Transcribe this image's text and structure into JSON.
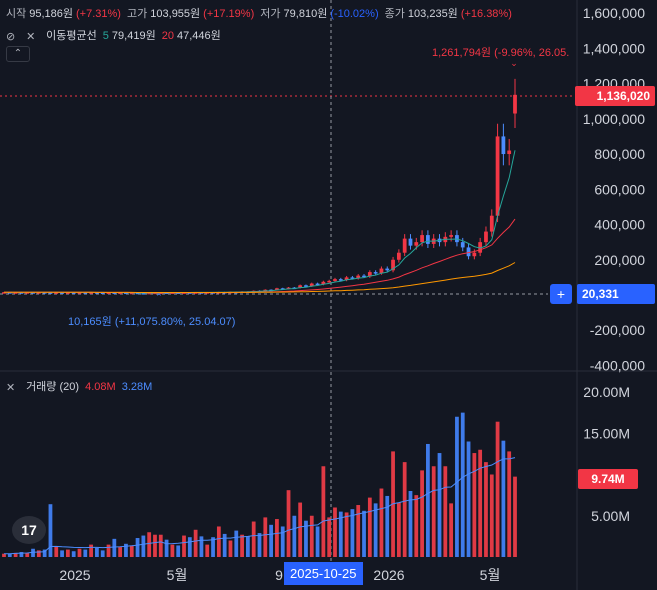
{
  "legend": {
    "open_label": "시작",
    "open_val": "95,186원",
    "open_pct": "(+7.31%)",
    "high_label": "고가",
    "high_val": "103,955원",
    "high_pct": "(+17.19%)",
    "low_label": "저가",
    "low_val": "79,810원",
    "low_pct": "(-10.02%)",
    "close_label": "종가",
    "close_val": "103,235원",
    "close_pct": "(+16.38%)",
    "ma_title": "이동평균선",
    "ma5_period": "5",
    "ma5_val": "79,419원",
    "ma20_period": "20",
    "ma20_val": "47,446원",
    "vol_title": "거래량 (20)",
    "vol_val1": "4.08M",
    "vol_val2": "3.28M"
  },
  "annotations": {
    "high_text": "1,261,794원 (-9.96%, 26.05.",
    "low_text": "10,165원 (+11,075.80%, 25.04.07)",
    "last_price_tag": "1,136,020",
    "crosshair_price_tag": "20,331",
    "crosshair_date_tag": "2025-10-25",
    "last_volume_tag": "9.74M"
  },
  "colors": {
    "up": "#f23645",
    "down": "#2962ff",
    "bg": "#131722",
    "ma5": "#26a69a",
    "ma20": "#f23645",
    "ma60": "#ff9800"
  },
  "chart_data": {
    "type": "candlestick",
    "price_axis": {
      "ticks": [
        1600000,
        1400000,
        1200000,
        1000000,
        800000,
        600000,
        400000,
        200000,
        0,
        -200000,
        -400000
      ],
      "tick_labels": [
        "1,600,000",
        "1,400,000",
        "1,200,000",
        "1,000,000",
        "800,000",
        "600,000",
        "400,000",
        "200,000",
        "0",
        "-200,000",
        "-400,000"
      ]
    },
    "volume_axis": {
      "ticks": [
        20000000,
        15000000,
        10000000,
        5000000
      ],
      "tick_labels": [
        "20.00M",
        "15.00M",
        "10.00M",
        "5.00M"
      ]
    },
    "x_axis_labels": [
      "2025",
      "5월",
      "9",
      "2026",
      "5월"
    ],
    "weekly": [
      {
        "o": 15000,
        "c": 16000,
        "v": 0.4
      },
      {
        "o": 16000,
        "c": 15000,
        "v": 0.4
      },
      {
        "o": 15000,
        "c": 15500,
        "v": 0.5
      },
      {
        "o": 15500,
        "c": 14800,
        "v": 0.6
      },
      {
        "o": 14800,
        "c": 15800,
        "v": 0.5
      },
      {
        "o": 15800,
        "c": 15000,
        "v": 1.0
      },
      {
        "o": 15000,
        "c": 16000,
        "v": 0.8
      },
      {
        "o": 16000,
        "c": 15000,
        "v": 0.9
      },
      {
        "o": 15000,
        "c": 14500,
        "v": 6.4
      },
      {
        "o": 14500,
        "c": 15200,
        "v": 1.3
      },
      {
        "o": 15200,
        "c": 14000,
        "v": 0.8
      },
      {
        "o": 14000,
        "c": 15000,
        "v": 0.9
      },
      {
        "o": 15000,
        "c": 14200,
        "v": 0.7
      },
      {
        "o": 14200,
        "c": 15500,
        "v": 1.0
      },
      {
        "o": 15500,
        "c": 14500,
        "v": 0.9
      },
      {
        "o": 14500,
        "c": 15500,
        "v": 1.5
      },
      {
        "o": 15500,
        "c": 14000,
        "v": 1.1
      },
      {
        "o": 14000,
        "c": 13500,
        "v": 0.8
      },
      {
        "o": 13500,
        "c": 14500,
        "v": 1.5
      },
      {
        "o": 14500,
        "c": 13000,
        "v": 2.2
      },
      {
        "o": 13000,
        "c": 14000,
        "v": 1.2
      },
      {
        "o": 14000,
        "c": 12000,
        "v": 1.6
      },
      {
        "o": 12000,
        "c": 13000,
        "v": 1.4
      },
      {
        "o": 13000,
        "c": 11000,
        "v": 2.3
      },
      {
        "o": 11000,
        "c": 10800,
        "v": 2.6
      },
      {
        "o": 10800,
        "c": 12500,
        "v": 3.0
      },
      {
        "o": 12500,
        "c": 13500,
        "v": 2.7
      },
      {
        "o": 13500,
        "c": 14000,
        "v": 2.7
      },
      {
        "o": 14000,
        "c": 13000,
        "v": 2.1
      },
      {
        "o": 13000,
        "c": 14500,
        "v": 1.5
      },
      {
        "o": 14500,
        "c": 13500,
        "v": 1.4
      },
      {
        "o": 13500,
        "c": 15000,
        "v": 2.6
      },
      {
        "o": 15000,
        "c": 14000,
        "v": 2.4
      },
      {
        "o": 14000,
        "c": 15500,
        "v": 3.3
      },
      {
        "o": 15500,
        "c": 14500,
        "v": 2.5
      },
      {
        "o": 14500,
        "c": 16000,
        "v": 1.5
      },
      {
        "o": 16000,
        "c": 15000,
        "v": 2.4
      },
      {
        "o": 15000,
        "c": 17000,
        "v": 3.7
      },
      {
        "o": 17000,
        "c": 16000,
        "v": 2.8
      },
      {
        "o": 16000,
        "c": 18000,
        "v": 2.0
      },
      {
        "o": 18000,
        "c": 17000,
        "v": 3.2
      },
      {
        "o": 17000,
        "c": 20000,
        "v": 2.7
      },
      {
        "o": 20000,
        "c": 19000,
        "v": 2.5
      },
      {
        "o": 19000,
        "c": 24000,
        "v": 4.3
      },
      {
        "o": 24000,
        "c": 22000,
        "v": 2.9
      },
      {
        "o": 22000,
        "c": 30000,
        "v": 4.8
      },
      {
        "o": 30000,
        "c": 28000,
        "v": 3.9
      },
      {
        "o": 28000,
        "c": 38000,
        "v": 4.6
      },
      {
        "o": 38000,
        "c": 35000,
        "v": 3.7
      },
      {
        "o": 35000,
        "c": 42000,
        "v": 8.1
      },
      {
        "o": 42000,
        "c": 40000,
        "v": 5.0
      },
      {
        "o": 40000,
        "c": 55000,
        "v": 6.6
      },
      {
        "o": 55000,
        "c": 50000,
        "v": 4.4
      },
      {
        "o": 50000,
        "c": 65000,
        "v": 5.0
      },
      {
        "o": 65000,
        "c": 60000,
        "v": 3.7
      },
      {
        "o": 60000,
        "c": 75000,
        "v": 11.0
      },
      {
        "o": 75000,
        "c": 80000,
        "v": 4.8
      },
      {
        "o": 80000,
        "c": 90000,
        "v": 6.0
      },
      {
        "o": 90000,
        "c": 85000,
        "v": 5.5
      },
      {
        "o": 85000,
        "c": 100000,
        "v": 5.4
      },
      {
        "o": 100000,
        "c": 95000,
        "v": 5.8
      },
      {
        "o": 95000,
        "c": 110000,
        "v": 6.3
      },
      {
        "o": 110000,
        "c": 105000,
        "v": 5.6
      },
      {
        "o": 105000,
        "c": 130000,
        "v": 7.2
      },
      {
        "o": 130000,
        "c": 125000,
        "v": 6.5
      },
      {
        "o": 125000,
        "c": 150000,
        "v": 8.3
      },
      {
        "o": 150000,
        "c": 140000,
        "v": 7.4
      },
      {
        "o": 140000,
        "c": 200000,
        "v": 12.8
      },
      {
        "o": 200000,
        "c": 240000,
        "v": 6.6
      },
      {
        "o": 240000,
        "c": 320000,
        "v": 11.5
      },
      {
        "o": 320000,
        "c": 280000,
        "v": 8.0
      },
      {
        "o": 280000,
        "c": 300000,
        "v": 7.5
      },
      {
        "o": 300000,
        "c": 340000,
        "v": 10.5
      },
      {
        "o": 340000,
        "c": 290000,
        "v": 13.7
      },
      {
        "o": 290000,
        "c": 320000,
        "v": 11.0
      },
      {
        "o": 320000,
        "c": 300000,
        "v": 12.6
      },
      {
        "o": 300000,
        "c": 330000,
        "v": 11.0
      },
      {
        "o": 330000,
        "c": 340000,
        "v": 6.5
      },
      {
        "o": 340000,
        "c": 300000,
        "v": 17.0
      },
      {
        "o": 300000,
        "c": 270000,
        "v": 17.5
      },
      {
        "o": 270000,
        "c": 220000,
        "v": 14.0
      },
      {
        "o": 220000,
        "c": 240000,
        "v": 12.6
      },
      {
        "o": 240000,
        "c": 300000,
        "v": 13.0
      },
      {
        "o": 300000,
        "c": 360000,
        "v": 11.5
      },
      {
        "o": 360000,
        "c": 450000,
        "v": 10.0
      },
      {
        "o": 450000,
        "c": 900000,
        "v": 16.4
      },
      {
        "o": 900000,
        "c": 800000,
        "v": 14.1
      },
      {
        "o": 800000,
        "c": 820000,
        "v": 12.8
      },
      {
        "o": 1030000,
        "c": 1136020,
        "v": 9.74
      }
    ]
  }
}
